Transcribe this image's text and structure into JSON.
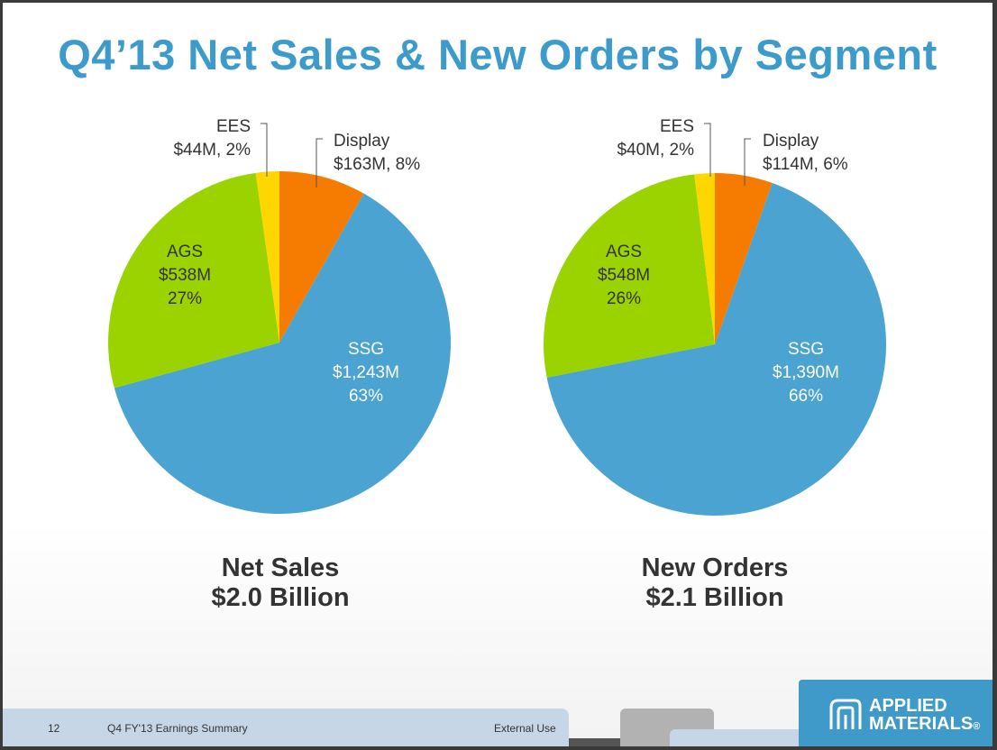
{
  "title": "Q4’13 Net Sales & New Orders by Segment",
  "chart_data": [
    {
      "type": "pie",
      "name": "Net Sales",
      "caption_line1": "Net Sales",
      "caption_line2": "$2.0 Billion",
      "slices": [
        {
          "label": "Display",
          "value": 163,
          "text_amount": "$163M, 8%",
          "color": "#f57c00"
        },
        {
          "label": "SSG",
          "value": 1243,
          "text_amount": "$1,243M",
          "text_pct": "63%",
          "color": "#4aa3d1"
        },
        {
          "label": "AGS",
          "value": 538,
          "text_amount": "$538M",
          "text_pct": "27%",
          "color": "#9bd300"
        },
        {
          "label": "EES",
          "value": 44,
          "text_amount": "$44M, 2%",
          "color": "#ffd700"
        }
      ]
    },
    {
      "type": "pie",
      "name": "New Orders",
      "caption_line1": "New Orders",
      "caption_line2": "$2.1 Billion",
      "slices": [
        {
          "label": "Display",
          "value": 114,
          "text_amount": "$114M, 6%",
          "color": "#f57c00"
        },
        {
          "label": "SSG",
          "value": 1390,
          "text_amount": "$1,390M",
          "text_pct": "66%",
          "color": "#4aa3d1"
        },
        {
          "label": "AGS",
          "value": 548,
          "text_amount": "$548M",
          "text_pct": "26%",
          "color": "#9bd300"
        },
        {
          "label": "EES",
          "value": 40,
          "text_amount": "$40M, 2%",
          "color": "#ffd700"
        }
      ]
    }
  ],
  "footer": {
    "page_number": "12",
    "doc_title": "Q4 FY'13 Earnings Summary",
    "classification": "External Use"
  },
  "logo": {
    "line1": "APPLIED",
    "line2": "MATERIALS",
    "mark": "®"
  }
}
